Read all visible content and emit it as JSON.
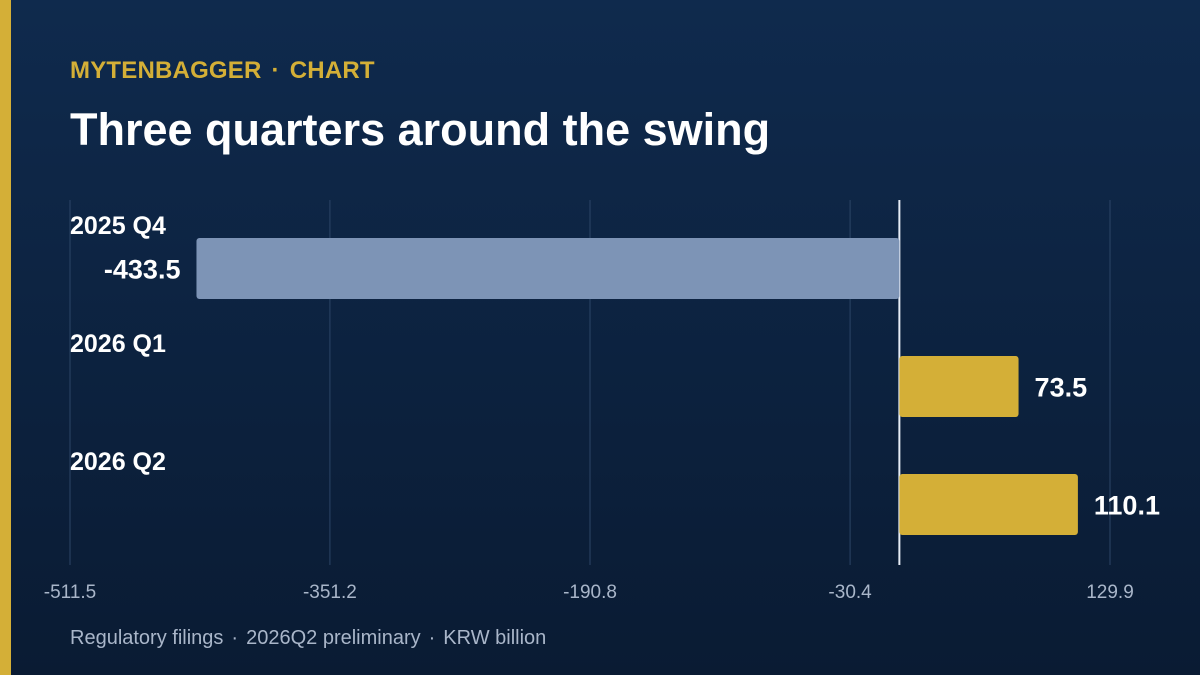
{
  "colors": {
    "background": "#0c2240",
    "accent": "#d4af37",
    "negative_bar": "#7d94b6",
    "positive_bar": "#d4af37",
    "grid": "#2c4566",
    "zero_line": "#e6ecf5",
    "text": "#ffffff",
    "muted_text": "#a9b6c9"
  },
  "header": {
    "brand": "MYTENBAGGER",
    "separator": "·",
    "section": "CHART",
    "title": "Three quarters around the swing"
  },
  "footer": {
    "source": "Regulatory filings",
    "separator": "·",
    "note": "2026Q2 preliminary",
    "unit": "KRW billion"
  },
  "chart_data": {
    "type": "bar",
    "orientation": "horizontal",
    "title": "Three quarters around the swing",
    "categories": [
      "2025 Q4",
      "2026 Q1",
      "2026 Q2"
    ],
    "values": [
      -433.5,
      73.5,
      110.1
    ],
    "value_labels": [
      "-433.5",
      "73.5",
      "110.1"
    ],
    "xlim": [
      -511.5,
      129.9
    ],
    "xticks": [
      -511.5,
      -351.2,
      -190.8,
      -30.4,
      129.9
    ],
    "xtick_labels": [
      "-511.5",
      "-351.2",
      "-190.8",
      "-30.4",
      "129.9"
    ],
    "grid": "vertical",
    "zero_line": true
  }
}
